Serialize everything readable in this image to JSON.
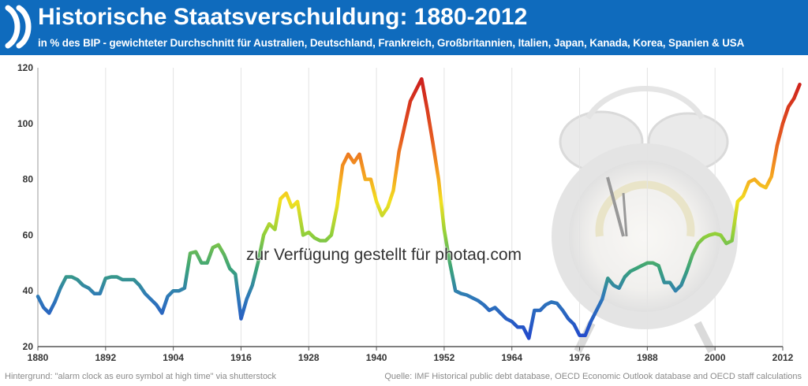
{
  "header": {
    "title": "Historische Staatsverschuldung: 1880-2012",
    "subtitle": "in % des BIP - gewichteter Durchschnitt für Australien, Deutschland, Frankreich, Großbritannien, Italien, Japan, Kanada, Korea, Spanien & USA",
    "logo": "oecd-logo-icon"
  },
  "watermark": "zur Verfügung gestellt für photaq.com",
  "footer": {
    "left": "Hintergrund: \"alarm clock as euro symbol at high time\" via shutterstock",
    "right": "Quelle: IMF Historical public debt database, OECD Economic Outlook database and OECD staff calculations"
  },
  "background_image": "alarm-clock-euro-icon",
  "colors": {
    "header": "#0f6bbd",
    "low": "#1f4fbf",
    "mid": "#3fae6a",
    "high": "#d42a1a"
  },
  "chart_data": {
    "type": "line",
    "title": "Historische Staatsverschuldung: 1880-2012",
    "xlabel": "",
    "ylabel": "",
    "xlim": [
      1880,
      2012
    ],
    "ylim": [
      20,
      120
    ],
    "x_ticks": [
      "1880",
      "1892",
      "1904",
      "1916",
      "1928",
      "1940",
      "1952",
      "1964",
      "1976",
      "1988",
      "2000",
      "2012"
    ],
    "y_ticks": [
      "20",
      "40",
      "60",
      "80",
      "100",
      "120"
    ],
    "grid": "vertical",
    "series": [
      {
        "name": "",
        "color_scale": "value",
        "points": [
          [
            1880,
            38
          ],
          [
            1881,
            34
          ],
          [
            1882,
            32
          ],
          [
            1883,
            36
          ],
          [
            1884,
            41
          ],
          [
            1885,
            45
          ],
          [
            1886,
            45
          ],
          [
            1887,
            44
          ],
          [
            1888,
            42
          ],
          [
            1889,
            41
          ],
          [
            1890,
            39
          ],
          [
            1891,
            39
          ],
          [
            1892,
            44.5
          ],
          [
            1893,
            45
          ],
          [
            1894,
            45
          ],
          [
            1895,
            44
          ],
          [
            1896,
            44
          ],
          [
            1897,
            44
          ],
          [
            1898,
            42
          ],
          [
            1899,
            39
          ],
          [
            1900,
            37
          ],
          [
            1901,
            35
          ],
          [
            1902,
            32
          ],
          [
            1903,
            38
          ],
          [
            1904,
            40
          ],
          [
            1905,
            40
          ],
          [
            1906,
            41
          ],
          [
            1907,
            53.5
          ],
          [
            1908,
            54
          ],
          [
            1909,
            50
          ],
          [
            1910,
            50
          ],
          [
            1911,
            55.5
          ],
          [
            1912,
            56.5
          ],
          [
            1913,
            53
          ],
          [
            1914,
            48
          ],
          [
            1915,
            46
          ],
          [
            1916,
            30
          ],
          [
            1917,
            37
          ],
          [
            1918,
            42
          ],
          [
            1919,
            50
          ],
          [
            1920,
            60
          ],
          [
            1921,
            64
          ],
          [
            1922,
            62
          ],
          [
            1923,
            73
          ],
          [
            1924,
            75
          ],
          [
            1925,
            70
          ],
          [
            1926,
            72
          ],
          [
            1927,
            60
          ],
          [
            1928,
            61
          ],
          [
            1929,
            59
          ],
          [
            1930,
            58
          ],
          [
            1931,
            58
          ],
          [
            1932,
            60
          ],
          [
            1933,
            70
          ],
          [
            1934,
            85
          ],
          [
            1935,
            89
          ],
          [
            1936,
            86
          ],
          [
            1937,
            89
          ],
          [
            1938,
            80
          ],
          [
            1939,
            80
          ],
          [
            1940,
            72
          ],
          [
            1941,
            67
          ],
          [
            1942,
            70
          ],
          [
            1943,
            76
          ],
          [
            1944,
            90
          ],
          [
            1945,
            99
          ],
          [
            1946,
            108
          ],
          [
            1947,
            112
          ],
          [
            1948,
            116
          ],
          [
            1949,
            105
          ],
          [
            1950,
            93
          ],
          [
            1951,
            80
          ],
          [
            1952,
            62
          ],
          [
            1953,
            50
          ],
          [
            1954,
            40
          ],
          [
            1955,
            39
          ],
          [
            1956,
            38.5
          ],
          [
            1957,
            37.5
          ],
          [
            1958,
            36.5
          ],
          [
            1959,
            35
          ],
          [
            1960,
            33
          ],
          [
            1961,
            34
          ],
          [
            1962,
            32
          ],
          [
            1963,
            30
          ],
          [
            1964,
            29
          ],
          [
            1965,
            27
          ],
          [
            1966,
            27
          ],
          [
            1967,
            23
          ],
          [
            1968,
            33
          ],
          [
            1969,
            33
          ],
          [
            1970,
            35
          ],
          [
            1971,
            36
          ],
          [
            1972,
            35.5
          ],
          [
            1973,
            33
          ],
          [
            1974,
            30
          ],
          [
            1975,
            28
          ],
          [
            1976,
            24
          ],
          [
            1977,
            24
          ],
          [
            1978,
            29
          ],
          [
            1979,
            33
          ],
          [
            1980,
            37
          ],
          [
            1981,
            44.5
          ],
          [
            1982,
            42
          ],
          [
            1983,
            41
          ],
          [
            1984,
            45
          ],
          [
            1985,
            47
          ],
          [
            1986,
            48
          ],
          [
            1987,
            49
          ],
          [
            1988,
            50
          ],
          [
            1989,
            50
          ],
          [
            1990,
            49
          ],
          [
            1991,
            43
          ],
          [
            1992,
            43
          ],
          [
            1993,
            40
          ],
          [
            1994,
            42
          ],
          [
            1995,
            47
          ],
          [
            1996,
            53
          ],
          [
            1997,
            57
          ],
          [
            1998,
            59
          ],
          [
            1999,
            60
          ],
          [
            2000,
            60.5
          ],
          [
            2001,
            60
          ],
          [
            2002,
            57
          ],
          [
            2003,
            58
          ],
          [
            2004,
            72
          ],
          [
            2005,
            74
          ],
          [
            2006,
            79
          ],
          [
            2007,
            80
          ],
          [
            2008,
            78
          ],
          [
            2009,
            77
          ],
          [
            2010,
            81
          ],
          [
            2011,
            92
          ],
          [
            2012,
            100
          ],
          [
            2013,
            106
          ],
          [
            2014,
            109
          ],
          [
            2015,
            114
          ]
        ]
      }
    ]
  }
}
